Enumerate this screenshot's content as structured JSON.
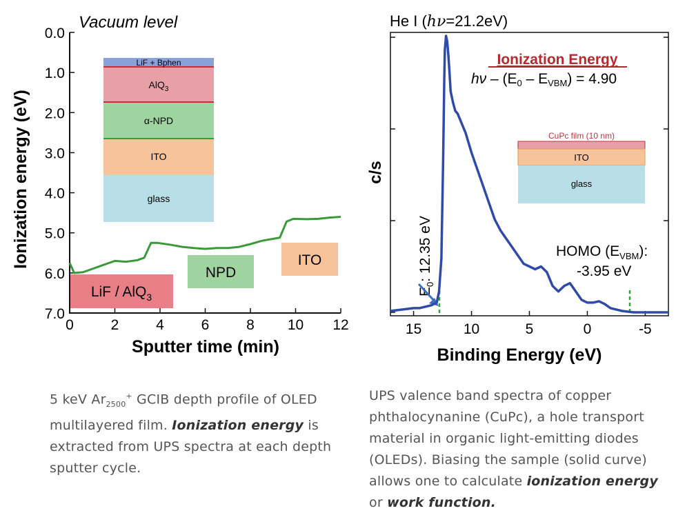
{
  "colors": {
    "curve": "#2f4aa8",
    "profile": "#3a9a3a",
    "lif_bphen": "#8aa0d8",
    "alq3": "#e8a0a8",
    "npd": "#9fd4a0",
    "ito": "#f6c39a",
    "glass": "#b8dfe8",
    "red_border": "#c0303a",
    "ion_title": "#b7282e",
    "arrow": "#3a6ec0",
    "dash": "#2ea33a"
  },
  "left_chart": {
    "title": "Vacuum level",
    "ylabel": "Ionization energy (eV)",
    "xlabel": "Sputter time (min)",
    "yticks": [
      "0.0",
      "1.0",
      "2.0",
      "3.0",
      "4.0",
      "5.0",
      "6.0",
      "7.0"
    ],
    "xticks": [
      "0",
      "2",
      "4",
      "6",
      "8",
      "10",
      "12"
    ],
    "stack": {
      "lif": "LiF + Bphen",
      "alq3": "AlQ",
      "alq3_sub": "3",
      "npd": "α-NPD",
      "ito": "ITO",
      "glass": "glass"
    },
    "labels": {
      "lif_alq3": "LiF / AlQ",
      "lif_alq3_sub": "3",
      "npd": "NPD",
      "ito": "ITO"
    }
  },
  "right_chart": {
    "title_prefix": "He I (",
    "title_hv": "hν",
    "title_suffix": "=21.2eV)",
    "ylabel": "c/s",
    "xlabel": "Binding Energy (eV)",
    "xticks": [
      "15",
      "10",
      "5",
      "0",
      "-5"
    ],
    "ion_title": "Ionization Energy",
    "formula_hv": "hν",
    "formula_mid": " – (E",
    "formula_sub0": "0",
    "formula_mid2": " – E",
    "formula_subv": "VBM",
    "formula_end": ") = 4.90",
    "stack": {
      "cupc": "CuPc film (10 nm)",
      "ito": "ITO",
      "glass": "glass"
    },
    "e0_label": "E",
    "e0_sub": "0",
    "e0_value": ": 12.35 eV",
    "homo_line1_a": "HOMO (E",
    "homo_line1_sub": "VBM",
    "homo_line1_b": "):",
    "homo_line2": "-3.95 eV"
  },
  "captions": {
    "left": {
      "p1": "5 keV Ar",
      "sub": "2500",
      "sup": "+",
      "p2": " GCIB depth profile of OLED multilayered film.  ",
      "bold": "Ionization energy",
      "p3": " is extracted from UPS spectra at each depth sputter cycle."
    },
    "right": {
      "p1": "UPS valence band spectra of copper phthalocynanine (CuPc), a hole transport material in organic light-emitting diodes (OLEDs).  Biasing the sample (solid curve) allows one to calculate ",
      "bold1": "ionization energy",
      "p2": " or ",
      "bold2": "work function."
    }
  },
  "chart_data": [
    {
      "type": "line",
      "title": "Vacuum level",
      "xlabel": "Sputter time (min)",
      "ylabel": "Ionization energy (eV)",
      "xlim": [
        0,
        12
      ],
      "ylim": [
        7.0,
        0.0
      ],
      "series": [
        {
          "x": [
            0,
            0.2,
            0.6,
            1.0,
            1.5,
            2.0,
            2.5,
            3.0,
            3.3,
            3.6,
            3.9,
            4.5,
            5.0,
            5.5,
            6.0,
            6.5,
            7.0,
            7.5,
            8.0,
            8.5,
            9.0,
            9.3,
            9.6,
            9.9,
            10.5,
            11.0,
            11.5,
            12.0
          ],
          "y": [
            5.75,
            6.0,
            5.98,
            5.9,
            5.8,
            5.7,
            5.72,
            5.68,
            5.62,
            5.25,
            5.25,
            5.3,
            5.35,
            5.38,
            5.4,
            5.38,
            5.38,
            5.35,
            5.28,
            5.2,
            5.15,
            5.12,
            4.72,
            4.65,
            4.66,
            4.65,
            4.62,
            4.6
          ]
        }
      ]
    },
    {
      "type": "line",
      "title": "He I (hν=21.2eV)",
      "xlabel": "Binding Energy (eV)",
      "ylabel": "c/s",
      "xlim": [
        17,
        -7
      ],
      "series": [
        {
          "x": [
            17,
            16,
            15,
            14.5,
            14,
            13.5,
            13.0,
            12.8,
            12.6,
            12.45,
            12.35,
            12.3,
            12.2,
            12.1,
            12.0,
            11.9,
            11.8,
            11.6,
            11.4,
            11.2,
            11.0,
            10.5,
            10.0,
            9.5,
            9.0,
            8.5,
            8.0,
            7.5,
            7.0,
            6.5,
            6.0,
            5.5,
            5.0,
            4.5,
            4.0,
            3.5,
            3.0,
            2.5,
            2.0,
            1.5,
            1.0,
            0.5,
            0.0,
            -0.5,
            -1.0,
            -1.5,
            -2.0,
            -3.0,
            -4.0,
            -5.0,
            -6.0,
            -7.0
          ],
          "y": [
            0.01,
            0.015,
            0.02,
            0.02,
            0.025,
            0.03,
            0.04,
            0.08,
            0.2,
            0.55,
            0.85,
            0.95,
            1.0,
            0.98,
            0.93,
            0.87,
            0.8,
            0.76,
            0.73,
            0.72,
            0.7,
            0.65,
            0.58,
            0.52,
            0.46,
            0.4,
            0.34,
            0.3,
            0.27,
            0.24,
            0.21,
            0.18,
            0.17,
            0.16,
            0.17,
            0.15,
            0.1,
            0.08,
            0.1,
            0.11,
            0.08,
            0.05,
            0.04,
            0.04,
            0.045,
            0.035,
            0.02,
            0.01,
            0.005,
            0.005,
            0.005,
            0.005
          ]
        }
      ]
    }
  ]
}
